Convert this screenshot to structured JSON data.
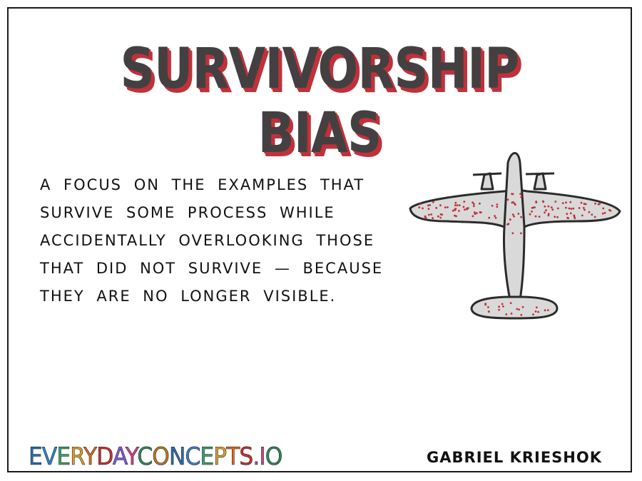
{
  "title": "SURVIVORSHIP BIAS",
  "definition_lines": [
    "A FOCUS ON THE EXAMPLES THAT",
    "SURVIVE SOME PROCESS WHILE",
    "ACCIDENTALLY OVERLOOKING THOSE",
    "THAT DID NOT SURVIVE — BECAUSE",
    "THEY ARE NO LONGER VISIBLE."
  ],
  "illustration": {
    "icon": "airplane-with-bullet-holes-icon",
    "plane_fill": "#d9d9d9",
    "outline_color": "#2b2b2b",
    "hole_color": "#c0313a"
  },
  "footer": {
    "brand": "EVERYDAYCONCEPTS.IO",
    "author": "GABRIEL KRIESHOK"
  },
  "colors": {
    "title_text": "#444042",
    "title_shadow": "#c0313a",
    "brand_palette": [
      "#2b6cb0",
      "#3182ce",
      "#38a169",
      "#d69e2e",
      "#dd6b20",
      "#c53030",
      "#805ad5",
      "#d53f8c",
      "#2f855a",
      "#b7791f"
    ]
  }
}
